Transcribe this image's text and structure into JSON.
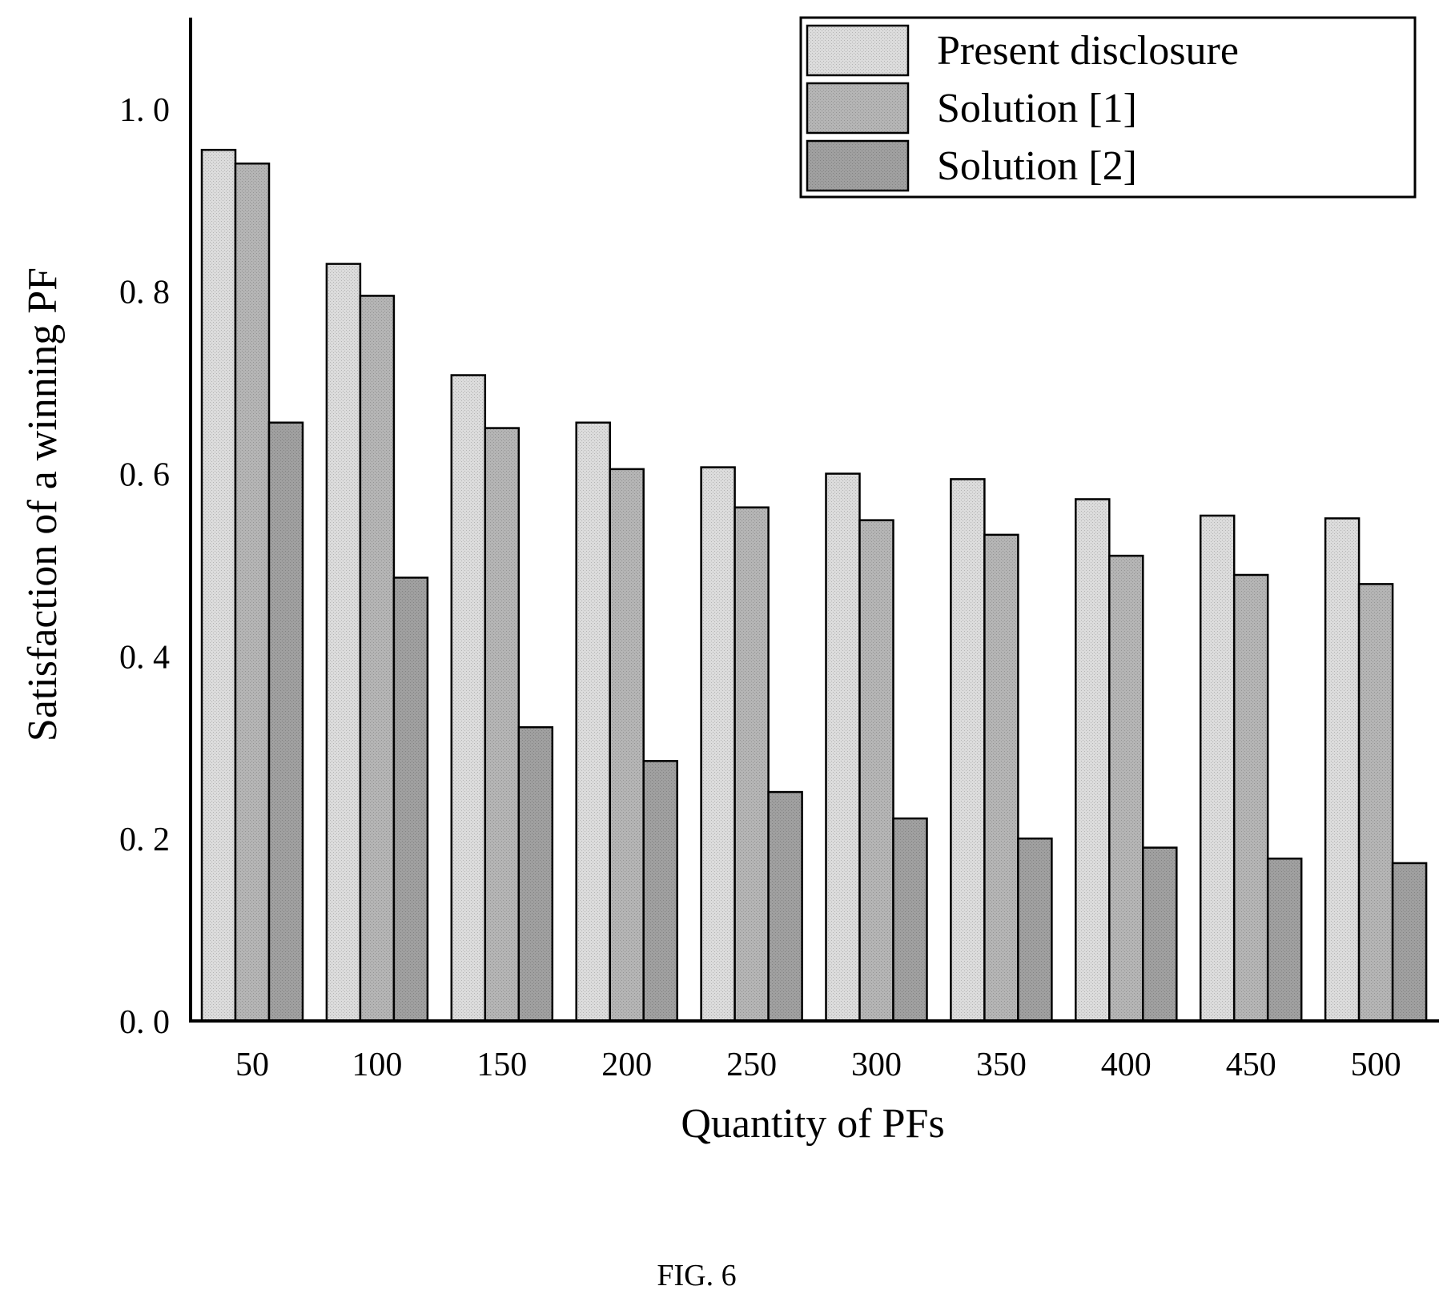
{
  "chart_data": {
    "type": "bar",
    "xlabel": "Quantity of PFs",
    "ylabel": "Satisfaction of a winning PF",
    "categories": [
      "50",
      "100",
      "150",
      "200",
      "250",
      "300",
      "350",
      "400",
      "450",
      "500"
    ],
    "ylim": [
      0,
      1.1
    ],
    "yticks": [
      "0. 0",
      "0. 2",
      "0. 4",
      "0. 6",
      "0. 8",
      "1. 0"
    ],
    "ytick_values": [
      0,
      0.2,
      0.4,
      0.6,
      0.8,
      1.0
    ],
    "grid": false,
    "legend_position": "top-right",
    "series": [
      {
        "name": "Present disclosure",
        "color": "#dcdcdc",
        "values": [
          0.955,
          0.83,
          0.708,
          0.656,
          0.607,
          0.6,
          0.594,
          0.572,
          0.554,
          0.551
        ]
      },
      {
        "name": "Solution [1]",
        "color": "#b5b5b5",
        "values": [
          0.94,
          0.795,
          0.65,
          0.605,
          0.563,
          0.549,
          0.533,
          0.51,
          0.489,
          0.479
        ]
      },
      {
        "name": "Solution [2]",
        "color": "#a0a0a0",
        "values": [
          0.656,
          0.486,
          0.322,
          0.285,
          0.251,
          0.222,
          0.2,
          0.19,
          0.178,
          0.173
        ]
      }
    ]
  },
  "caption": "FIG. 6"
}
